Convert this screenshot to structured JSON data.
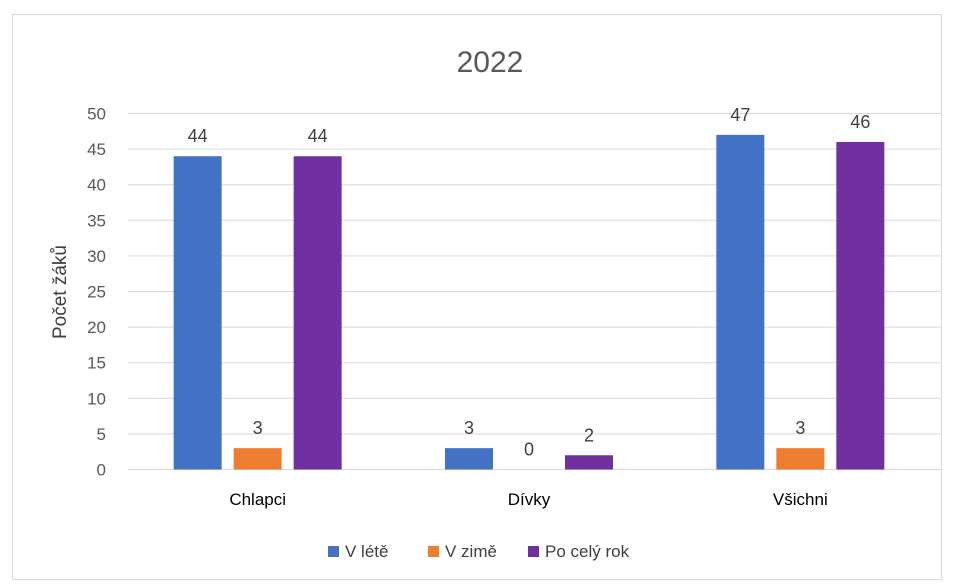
{
  "chart_data": {
    "type": "bar",
    "title": "2022",
    "xlabel": "",
    "ylabel": "Počet žáků",
    "ylim": [
      0,
      50
    ],
    "yticks": [
      0,
      5,
      10,
      15,
      20,
      25,
      30,
      35,
      40,
      45,
      50
    ],
    "grid": true,
    "legend_position": "bottom",
    "categories": [
      "Chlapci",
      "Dívky",
      "Všichni"
    ],
    "series": [
      {
        "name": "V létě",
        "color": "#4472C4",
        "values": [
          44,
          3,
          47
        ]
      },
      {
        "name": "V zimě",
        "color": "#ED7D31",
        "values": [
          3,
          0,
          3
        ]
      },
      {
        "name": "Po celý rok",
        "color": "#7030A0",
        "values": [
          44,
          2,
          46
        ]
      }
    ]
  }
}
